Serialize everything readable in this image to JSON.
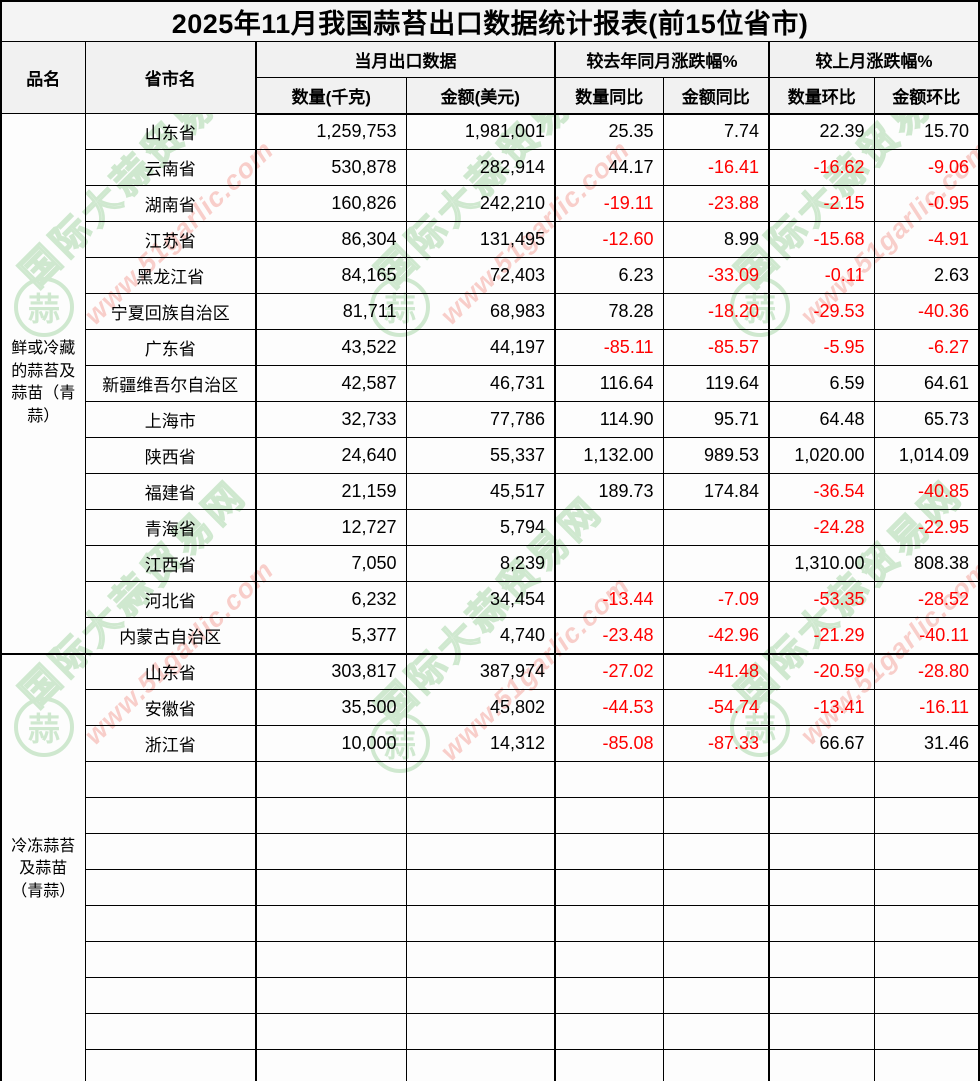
{
  "title": "2025年11月我国蒜苔出口数据统计报表(前15位省市)",
  "table": {
    "headers": {
      "product": "品名",
      "province": "省市名",
      "group_current": "当月出口数据",
      "group_yoy": "较去年同月涨跌幅%",
      "group_mom": "较上月涨跌幅%",
      "qty": "数量(千克)",
      "amount": "金额(美元)",
      "qty_yoy": "数量同比",
      "amt_yoy": "金额同比",
      "qty_mom": "数量环比",
      "amt_mom": "金额环比"
    },
    "sections": [
      {
        "product": "鲜或冷藏的蒜苔及蒜苗（青蒜）",
        "empty_row_count": 0,
        "rows": [
          {
            "province": "山东省",
            "qty": "1,259,753",
            "amount": "1,981,001",
            "qty_yoy": "25.35",
            "amt_yoy": "7.74",
            "qty_mom": "22.39",
            "amt_mom": "15.70"
          },
          {
            "province": "云南省",
            "qty": "530,878",
            "amount": "282,914",
            "qty_yoy": "44.17",
            "amt_yoy": "-16.41",
            "qty_mom": "-16.62",
            "amt_mom": "-9.06"
          },
          {
            "province": "湖南省",
            "qty": "160,826",
            "amount": "242,210",
            "qty_yoy": "-19.11",
            "amt_yoy": "-23.88",
            "qty_mom": "-2.15",
            "amt_mom": "-0.95"
          },
          {
            "province": "江苏省",
            "qty": "86,304",
            "amount": "131,495",
            "qty_yoy": "-12.60",
            "amt_yoy": "8.99",
            "qty_mom": "-15.68",
            "amt_mom": "-4.91"
          },
          {
            "province": "黑龙江省",
            "qty": "84,165",
            "amount": "72,403",
            "qty_yoy": "6.23",
            "amt_yoy": "-33.09",
            "qty_mom": "-0.11",
            "amt_mom": "2.63"
          },
          {
            "province": "宁夏回族自治区",
            "qty": "81,711",
            "amount": "68,983",
            "qty_yoy": "78.28",
            "amt_yoy": "-18.20",
            "qty_mom": "-29.53",
            "amt_mom": "-40.36"
          },
          {
            "province": "广东省",
            "qty": "43,522",
            "amount": "44,197",
            "qty_yoy": "-85.11",
            "amt_yoy": "-85.57",
            "qty_mom": "-5.95",
            "amt_mom": "-6.27"
          },
          {
            "province": "新疆维吾尔自治区",
            "qty": "42,587",
            "amount": "46,731",
            "qty_yoy": "116.64",
            "amt_yoy": "119.64",
            "qty_mom": "6.59",
            "amt_mom": "64.61"
          },
          {
            "province": "上海市",
            "qty": "32,733",
            "amount": "77,786",
            "qty_yoy": "114.90",
            "amt_yoy": "95.71",
            "qty_mom": "64.48",
            "amt_mom": "65.73"
          },
          {
            "province": "陕西省",
            "qty": "24,640",
            "amount": "55,337",
            "qty_yoy": "1,132.00",
            "amt_yoy": "989.53",
            "qty_mom": "1,020.00",
            "amt_mom": "1,014.09"
          },
          {
            "province": "福建省",
            "qty": "21,159",
            "amount": "45,517",
            "qty_yoy": "189.73",
            "amt_yoy": "174.84",
            "qty_mom": "-36.54",
            "amt_mom": "-40.85"
          },
          {
            "province": "青海省",
            "qty": "12,727",
            "amount": "5,794",
            "qty_yoy": "",
            "amt_yoy": "",
            "qty_mom": "-24.28",
            "amt_mom": "-22.95"
          },
          {
            "province": "江西省",
            "qty": "7,050",
            "amount": "8,239",
            "qty_yoy": "",
            "amt_yoy": "",
            "qty_mom": "1,310.00",
            "amt_mom": "808.38"
          },
          {
            "province": "河北省",
            "qty": "6,232",
            "amount": "34,454",
            "qty_yoy": "-13.44",
            "amt_yoy": "-7.09",
            "qty_mom": "-53.35",
            "amt_mom": "-28.52"
          },
          {
            "province": "内蒙古自治区",
            "qty": "5,377",
            "amount": "4,740",
            "qty_yoy": "-23.48",
            "amt_yoy": "-42.96",
            "qty_mom": "-21.29",
            "amt_mom": "-40.11"
          }
        ]
      },
      {
        "product": "冷冻蒜苔及蒜苗（青蒜）",
        "empty_row_count": 9,
        "rows": [
          {
            "province": "山东省",
            "qty": "303,817",
            "amount": "387,974",
            "qty_yoy": "-27.02",
            "amt_yoy": "-41.48",
            "qty_mom": "-20.59",
            "amt_mom": "-28.80"
          },
          {
            "province": "安徽省",
            "qty": "35,500",
            "amount": "45,802",
            "qty_yoy": "-44.53",
            "amt_yoy": "-54.74",
            "qty_mom": "-13.41",
            "amt_mom": "-16.11"
          },
          {
            "province": "浙江省",
            "qty": "10,000",
            "amount": "14,312",
            "qty_yoy": "-85.08",
            "amt_yoy": "-87.33",
            "qty_mom": "66.67",
            "amt_mom": "31.46"
          }
        ]
      }
    ]
  },
  "watermark": {
    "site_name": "国际大蒜贸易网",
    "url": "www.51garlic.com",
    "logo_char": "蒜"
  },
  "colors": {
    "negative": "#ff0000",
    "wm_green": "#abd8ab",
    "wm_pink": "#f5a9a2"
  }
}
